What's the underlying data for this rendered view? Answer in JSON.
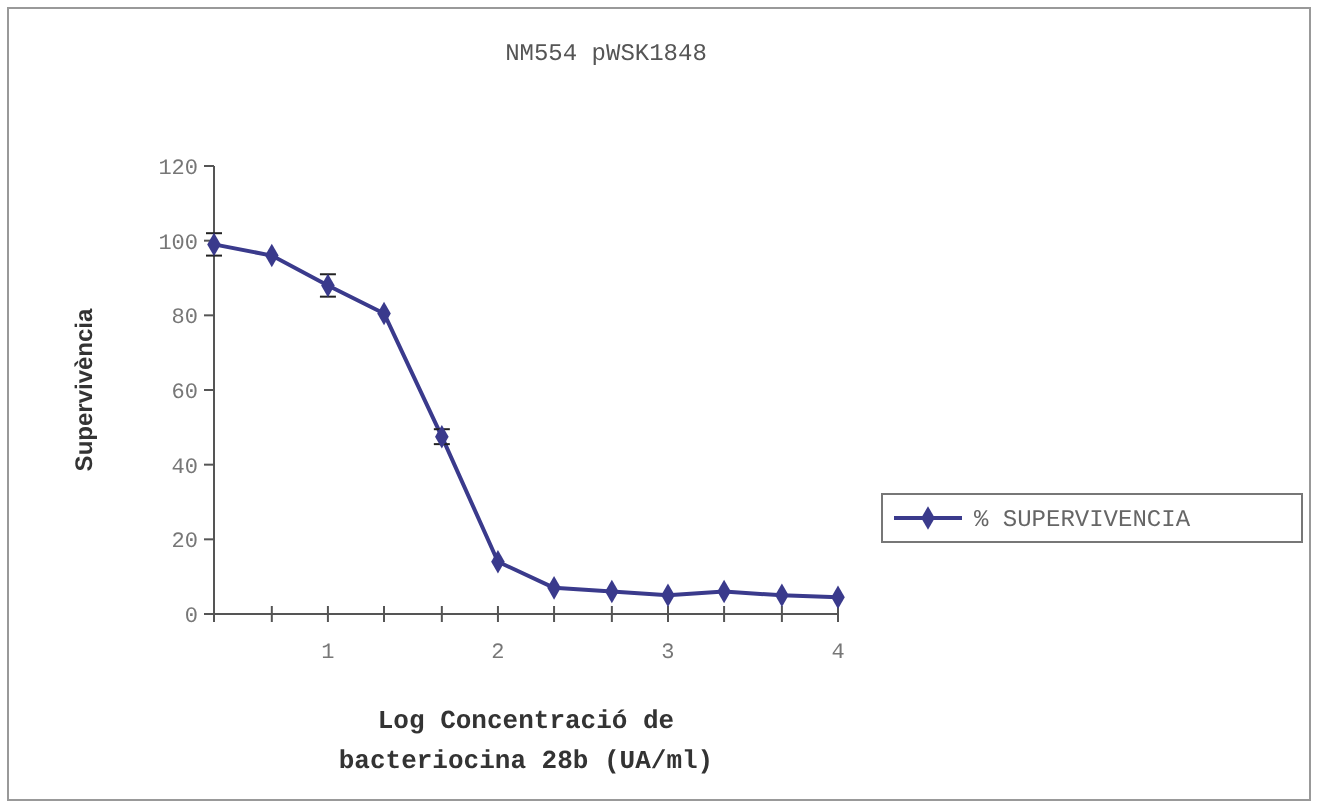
{
  "chart_data": {
    "type": "line",
    "title": "NM554 pWSK1848",
    "xlabel": "Log Concentració de bacteriocina 28b (UA/ml)",
    "ylabel": "Supervivència",
    "x": [
      0.33,
      0.67,
      1,
      1.33,
      1.67,
      2,
      2.33,
      2.67,
      3,
      3.33,
      3.67,
      4
    ],
    "series": [
      {
        "name": "% SUPERVIVENCIA",
        "color": "#3a3a8c",
        "values": [
          99,
          96,
          88,
          80.5,
          47.5,
          14,
          7,
          6,
          5,
          6,
          5,
          4.5
        ],
        "errors": [
          3,
          null,
          3,
          null,
          2,
          null,
          null,
          null,
          null,
          null,
          null,
          null
        ]
      }
    ],
    "xlim": [
      0.33,
      4
    ],
    "xticks": [
      {
        "value": 0.33,
        "label": null
      },
      {
        "value": 0.67,
        "label": null
      },
      1,
      {
        "value": 1.33,
        "label": null
      },
      {
        "value": 1.67,
        "label": null
      },
      2,
      {
        "value": 2.33,
        "label": null
      },
      {
        "value": 2.67,
        "label": null
      },
      3,
      {
        "value": 3.33,
        "label": null
      },
      {
        "value": 3.67,
        "label": null
      },
      4
    ],
    "ylim": [
      0,
      120
    ],
    "yticks": [
      0,
      20,
      40,
      60,
      80,
      100,
      120
    ],
    "grid": false,
    "legend": "right",
    "marker": "diamond",
    "line_style": "solid"
  }
}
